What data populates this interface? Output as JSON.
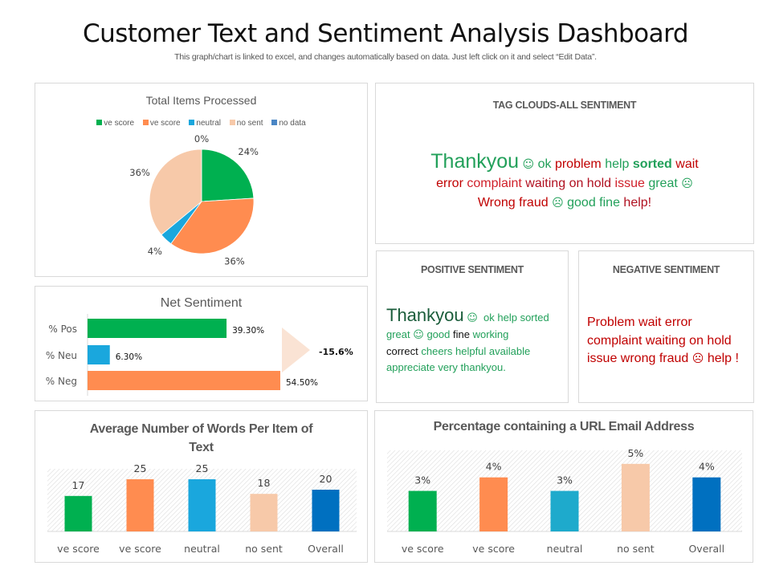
{
  "header": {
    "title": "Customer Text and Sentiment Analysis Dashboard",
    "subtitle": "This graph/chart is linked to excel, and changes automatically based on data. Just left click on it and select “Edit Data”."
  },
  "colors": {
    "green": "#00b050",
    "orange": "#ff8c50",
    "blue": "#1aa7dd",
    "peach": "#f7c9a9",
    "navy": "#0070c0",
    "no_data": "#4a86c5",
    "teal": "#1eaacc",
    "red": "#c00000",
    "cloud_green": "#22a05a",
    "dark_green": "#1a5c3a"
  },
  "tag_cloud": {
    "title": "TAG CLOUDS-ALL SENTIMENT",
    "line1": [
      {
        "text": "Thankyou",
        "color": "#22a05a",
        "size": "big"
      },
      {
        "text": "☺",
        "color": "#22a05a",
        "size": "icon"
      },
      {
        "text": "ok",
        "color": "#22a05a",
        "size": "normal"
      },
      {
        "text": "problem",
        "color": "#c00000",
        "size": "normal"
      },
      {
        "text": "help",
        "color": "#22a05a",
        "size": "normal"
      },
      {
        "text": "sorted",
        "color": "#22a05a",
        "size": "bold"
      },
      {
        "text": "wait",
        "color": "#c00000",
        "size": "normal"
      }
    ],
    "line2": [
      {
        "text": "error",
        "color": "#c00000"
      },
      {
        "text": "complaint",
        "color": "#d0202a"
      },
      {
        "text": "waiting",
        "color": "#b01020"
      },
      {
        "text": "on hold",
        "color": "#b01020"
      },
      {
        "text": "issue",
        "color": "#d0202a"
      },
      {
        "text": "great",
        "color": "#22a05a"
      },
      {
        "text": "☹",
        "color": "#22a05a"
      }
    ],
    "line3": [
      {
        "text": "Wrong fraud",
        "color": "#c00000"
      },
      {
        "text": "☹",
        "color": "#22a05a"
      },
      {
        "text": "good fine",
        "color": "#22a05a"
      },
      {
        "text": "help!",
        "color": "#b01020"
      }
    ]
  },
  "positive": {
    "title": "POSITIVE SENTIMENT",
    "big_word": "Thankyou",
    "smile": "☺",
    "line1_rest": "ok help sorted",
    "line2_a": "great",
    "line2_smile": "☺",
    "line2_b": "good",
    "line2_c": "fine",
    "line2_d": "working",
    "line3_a": "correct",
    "line3_b": "cheers helpful available",
    "line4": "appreciate very thankyou."
  },
  "negative": {
    "title": "NEGATIVE SENTIMENT",
    "line1": "Problem wait error",
    "line2": "complaint waiting on hold",
    "line3_a": "issue wrong fraud",
    "frown": "☹",
    "line3_b": "help !"
  },
  "chart_data": [
    {
      "type": "pie",
      "title": "Total Items Processed",
      "categories": [
        "ve score",
        "ve score",
        "neutral",
        "no sent",
        "no data"
      ],
      "values": [
        24,
        36,
        4,
        36,
        0
      ],
      "labels": [
        "24%",
        "36%",
        "4%",
        "36%",
        "0%"
      ],
      "colors": [
        "#00b050",
        "#ff8c50",
        "#1aa7dd",
        "#f7c9a9",
        "#4a86c5"
      ],
      "legend": "top"
    },
    {
      "type": "bar",
      "orientation": "horizontal",
      "title": "Net Sentiment",
      "categories": [
        "% Pos",
        "% Neu",
        "% Neg"
      ],
      "values": [
        39.3,
        6.3,
        54.5
      ],
      "labels": [
        "39.30%",
        "6.30%",
        "54.50%"
      ],
      "colors": [
        "#00b050",
        "#1aa7dd",
        "#ff8c50"
      ],
      "xlim": [
        0,
        60
      ],
      "annotation": "-15.6%"
    },
    {
      "type": "bar",
      "title": "Average Number of Words Per Item of Text",
      "title_lines": [
        "Average Number of Words Per Item of",
        "Text"
      ],
      "categories": [
        "ve score",
        "ve score",
        "neutral",
        "no sent",
        "Overall"
      ],
      "values": [
        17,
        25,
        25,
        18,
        20
      ],
      "labels": [
        "17",
        "25",
        "25",
        "18",
        "20"
      ],
      "colors": [
        "#00b050",
        "#ff8c50",
        "#1aa7dd",
        "#f7c9a9",
        "#0070c0"
      ],
      "ylim": [
        0,
        30
      ],
      "grid": false
    },
    {
      "type": "bar",
      "title": "Percentage containing a URL Email Address",
      "categories": [
        "ve score",
        "ve score",
        "neutral",
        "no sent",
        "Overall"
      ],
      "values": [
        3,
        4,
        3,
        5,
        4
      ],
      "labels": [
        "3%",
        "4%",
        "3%",
        "5%",
        "4%"
      ],
      "colors": [
        "#00b050",
        "#ff8c50",
        "#1eaacc",
        "#f7c9a9",
        "#0070c0"
      ],
      "ylim": [
        0,
        6
      ],
      "grid": false
    }
  ]
}
